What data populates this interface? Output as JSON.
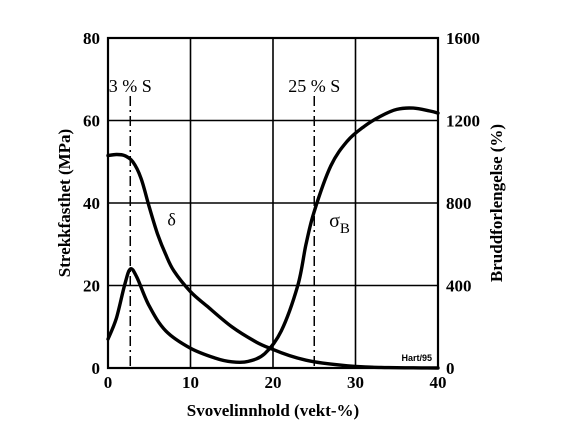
{
  "chart_data": {
    "type": "line",
    "xlabel": "Svovelinnhold (vekt-%)",
    "ylabel_left": "Strekkfasthet (MPa)",
    "ylabel_right": "Bruddforlengelse (%)",
    "xlim": [
      0,
      40
    ],
    "ylim_left": [
      0,
      80
    ],
    "ylim_right": [
      0,
      1600
    ],
    "xticks": [
      "0",
      "10",
      "20",
      "30",
      "40"
    ],
    "yticks_left": [
      "0",
      "20",
      "40",
      "60",
      "80"
    ],
    "yticks_right": [
      "0",
      "400",
      "800",
      "1200",
      "1600"
    ],
    "grid": true,
    "credit": "Hart/95",
    "annotations": [
      {
        "text": "3 % S",
        "x": 2.7
      },
      {
        "text": "25 % S",
        "x": 25
      }
    ],
    "series": [
      {
        "name": "σB",
        "axis": "left",
        "x": [
          0,
          1,
          2,
          2.7,
          3.5,
          5,
          7,
          10,
          13,
          15,
          17,
          19,
          21,
          23,
          24,
          25,
          27,
          29,
          31,
          33,
          35,
          37,
          39,
          40
        ],
        "y": [
          7,
          12,
          20,
          24,
          22,
          15,
          9,
          4.8,
          2.4,
          1.5,
          1.6,
          3.5,
          9,
          20,
          30,
          38,
          49,
          55,
          58.5,
          61,
          62.7,
          63,
          62.3,
          61.8
        ]
      },
      {
        "name": "δ",
        "axis": "right",
        "x": [
          0,
          1,
          2,
          3,
          4,
          5,
          6,
          7,
          8,
          10,
          12,
          15,
          18,
          20,
          22,
          24,
          26,
          28,
          30,
          32,
          34,
          36,
          38,
          40
        ],
        "y": [
          1030,
          1035,
          1030,
          1000,
          920,
          780,
          650,
          550,
          470,
          370,
          300,
          200,
          125,
          90,
          60,
          38,
          24,
          15,
          8,
          4,
          2,
          1,
          0.5,
          0
        ]
      }
    ]
  }
}
